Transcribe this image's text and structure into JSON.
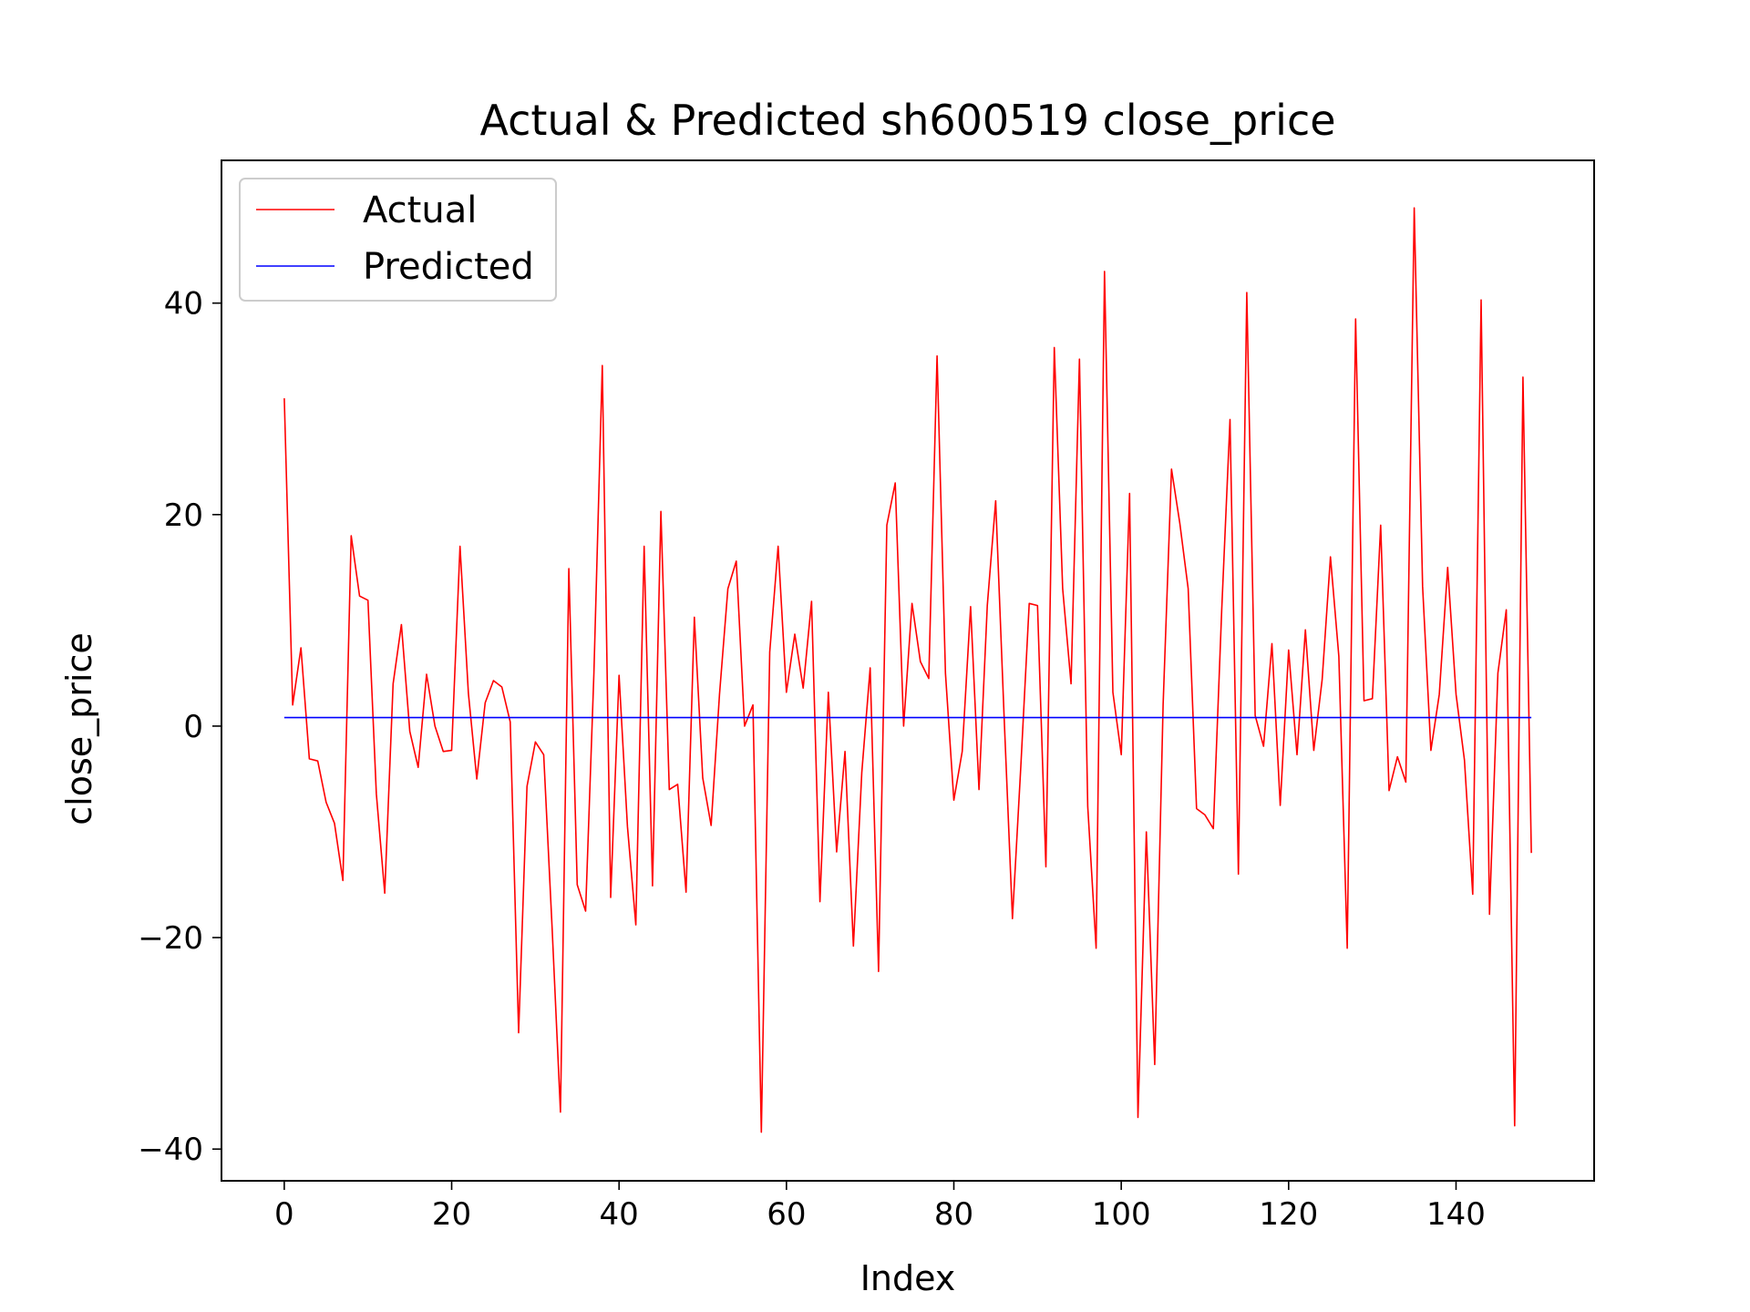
{
  "chart_data": {
    "type": "line",
    "title": "Actual & Predicted sh600519 close_price",
    "xlabel": "Index",
    "ylabel": "close_price",
    "xlim": [
      -7.5,
      156.5
    ],
    "ylim": [
      -43,
      53.5
    ],
    "xticks": [
      0,
      20,
      40,
      60,
      80,
      100,
      120,
      140
    ],
    "yticks": [
      -40,
      -20,
      0,
      20,
      40
    ],
    "grid": false,
    "legend_position": "top-left",
    "series": [
      {
        "name": "Actual",
        "color": "#ff0000",
        "x": [
          0,
          1,
          2,
          3,
          4,
          5,
          6,
          7,
          8,
          9,
          10,
          11,
          12,
          13,
          14,
          15,
          16,
          17,
          18,
          19,
          20,
          21,
          22,
          23,
          24,
          25,
          26,
          27,
          28,
          29,
          30,
          31,
          32,
          33,
          34,
          35,
          36,
          37,
          38,
          39,
          40,
          41,
          42,
          43,
          44,
          45,
          46,
          47,
          48,
          49,
          50,
          51,
          52,
          53,
          54,
          55,
          56,
          57,
          58,
          59,
          60,
          61,
          62,
          63,
          64,
          65,
          66,
          67,
          68,
          69,
          70,
          71,
          72,
          73,
          74,
          75,
          76,
          77,
          78,
          79,
          80,
          81,
          82,
          83,
          84,
          85,
          86,
          87,
          88,
          89,
          90,
          91,
          92,
          93,
          94,
          95,
          96,
          97,
          98,
          99,
          100,
          101,
          102,
          103,
          104,
          105,
          106,
          107,
          108,
          109,
          110,
          111,
          112,
          113,
          114,
          115,
          116,
          117,
          118,
          119,
          120,
          121,
          122,
          123,
          124,
          125,
          126,
          127,
          128,
          129,
          130,
          131,
          132,
          133,
          134,
          135,
          136,
          137,
          138,
          139,
          140,
          141,
          142,
          143,
          144,
          145,
          146,
          147,
          148,
          149
        ],
        "values": [
          31,
          2,
          7.4,
          -3.1,
          -3.3,
          -7.2,
          -9.2,
          -14.6,
          18,
          12.3,
          11.9,
          -6.4,
          -15.8,
          4,
          9.6,
          -0.5,
          -3.9,
          4.9,
          0,
          -2.4,
          -2.3,
          17,
          3.1,
          -5,
          2.2,
          4.3,
          3.7,
          0.4,
          -29,
          -5.7,
          -1.5,
          -2.7,
          -19,
          -36.5,
          14.9,
          -15,
          -17.5,
          5,
          34.1,
          -16.2,
          4.8,
          -9.5,
          -18.8,
          17,
          -15.1,
          20.3,
          -6,
          -5.5,
          -15.7,
          10.3,
          -4.9,
          -9.4,
          3,
          13,
          15.6,
          0,
          2,
          -38.4,
          7,
          17,
          3.2,
          8.7,
          3.6,
          11.8,
          -16.6,
          3.2,
          -11.9,
          -2.4,
          -20.8,
          -4.4,
          5.5,
          -23.2,
          19,
          23,
          0,
          11.6,
          6.1,
          4.5,
          35,
          5,
          -7,
          -2.4,
          11.3,
          -6,
          11.4,
          21.3,
          1,
          -18.2,
          -3.8,
          11.6,
          11.4,
          -13.3,
          35.8,
          13,
          4,
          34.7,
          -7.6,
          -21,
          43,
          3.2,
          -2.7,
          22,
          -37,
          -10,
          -32,
          2,
          24.3,
          19.2,
          13,
          -7.8,
          -8.4,
          -9.7,
          11,
          29,
          -14,
          41,
          1,
          -1.9,
          7.8,
          -7.5,
          7.2,
          -2.7,
          9.1,
          -2.3,
          4.4,
          16,
          6.6,
          -21,
          38.5,
          2.4,
          2.6,
          19,
          -6.1,
          -2.9,
          -5.3,
          49,
          13.2,
          -2.3,
          3,
          15,
          3,
          -3.2,
          -15.9,
          40.3,
          -17.8,
          5,
          11,
          -37.8,
          33,
          -12
        ]
      },
      {
        "name": "Predicted",
        "color": "#0000ff",
        "x": [
          0,
          149
        ],
        "values": [
          0.8,
          0.8
        ]
      }
    ]
  }
}
